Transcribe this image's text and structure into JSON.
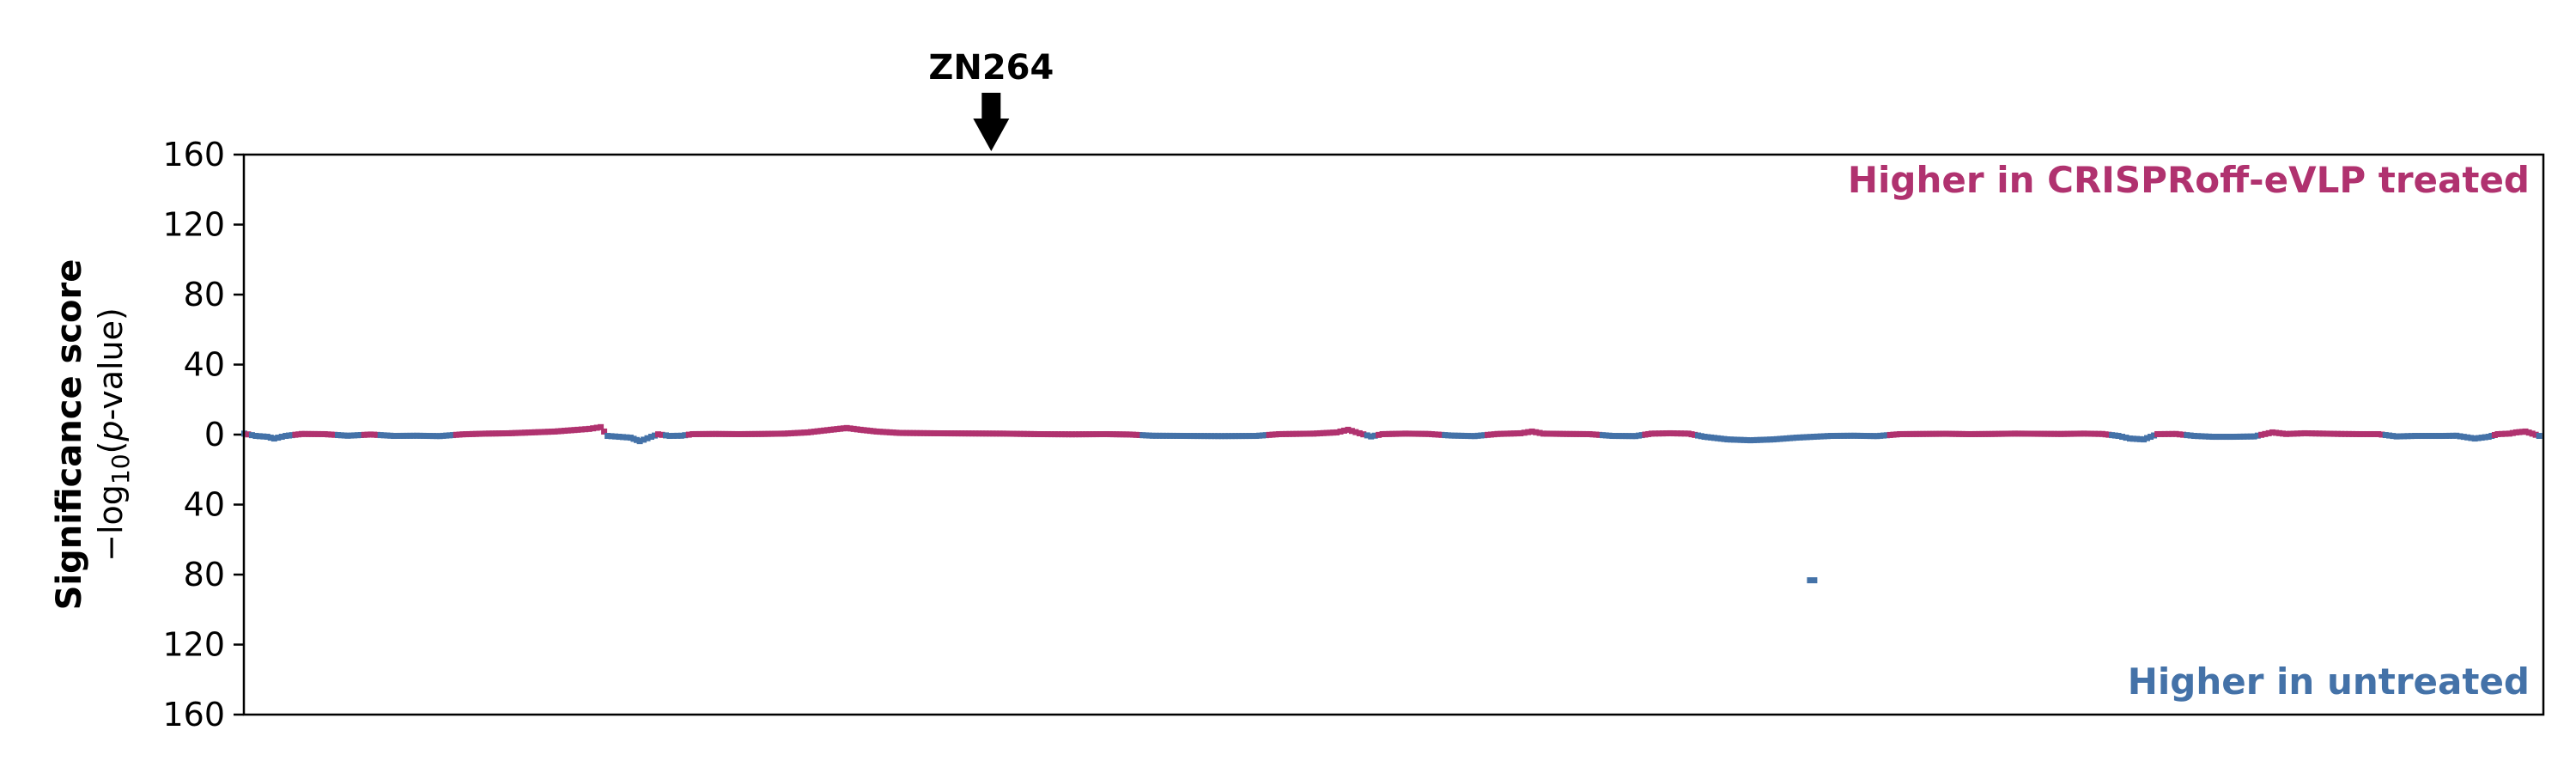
{
  "colors": {
    "up": "#b0326f",
    "down": "#4472a8",
    "axis": "#000000"
  },
  "chart_data": {
    "type": "scatter",
    "xlabel": "",
    "ylabel": "Significance score",
    "ylabel_sub": "−log10(p-value)",
    "ylim": [
      -160,
      160
    ],
    "yticks": [
      160,
      120,
      80,
      40,
      0,
      40,
      80,
      120,
      160
    ],
    "xlim": [
      0,
      1000
    ],
    "annotations": {
      "top_right": "Higher in CRISPRoff-eVLP treated",
      "bottom_right": "Higher in untreated"
    },
    "highlight": {
      "label": "ZN264",
      "x": 325
    },
    "series": [
      {
        "values": [
          [
            0,
            0.8,
            "down"
          ],
          [
            5,
            -0.5,
            "down"
          ],
          [
            10,
            -1.0,
            "down"
          ],
          [
            13,
            -2.0,
            "down"
          ],
          [
            18,
            -0.5,
            "down"
          ],
          [
            25,
            0.6,
            "up"
          ],
          [
            35,
            0.5,
            "up"
          ],
          [
            45,
            -0.4,
            "down"
          ],
          [
            55,
            0.3,
            "up"
          ],
          [
            65,
            -0.5,
            "down"
          ],
          [
            75,
            -0.4,
            "down"
          ],
          [
            85,
            -0.6,
            "down"
          ],
          [
            95,
            0.4,
            "up"
          ],
          [
            105,
            0.8,
            "up"
          ],
          [
            115,
            1.0,
            "up"
          ],
          [
            125,
            1.5,
            "up"
          ],
          [
            135,
            2.0,
            "up"
          ],
          [
            145,
            3.0,
            "up"
          ],
          [
            150,
            3.5,
            "up"
          ],
          [
            155,
            4.5,
            "up"
          ],
          [
            158,
            -0.5,
            "down"
          ],
          [
            163,
            -1.0,
            "down"
          ],
          [
            168,
            -1.5,
            "down"
          ],
          [
            172,
            -3.5,
            "down"
          ],
          [
            177,
            -1.0,
            "down"
          ],
          [
            180,
            0.4,
            "up"
          ],
          [
            185,
            -0.5,
            "down"
          ],
          [
            190,
            -0.4,
            "down"
          ],
          [
            195,
            0.5,
            "up"
          ],
          [
            205,
            0.6,
            "up"
          ],
          [
            215,
            0.5,
            "up"
          ],
          [
            225,
            0.6,
            "up"
          ],
          [
            235,
            0.8,
            "up"
          ],
          [
            245,
            1.5,
            "up"
          ],
          [
            255,
            3.0,
            "up"
          ],
          [
            262,
            4.0,
            "up"
          ],
          [
            268,
            3.0,
            "up"
          ],
          [
            275,
            2.0,
            "up"
          ],
          [
            285,
            1.2,
            "up"
          ],
          [
            300,
            1.0,
            "up"
          ],
          [
            315,
            0.9,
            "up"
          ],
          [
            330,
            0.8,
            "up"
          ],
          [
            345,
            0.5,
            "up"
          ],
          [
            360,
            0.4,
            "up"
          ],
          [
            375,
            0.5,
            "up"
          ],
          [
            385,
            0.3,
            "up"
          ],
          [
            395,
            -0.4,
            "down"
          ],
          [
            410,
            -0.5,
            "down"
          ],
          [
            425,
            -0.6,
            "down"
          ],
          [
            440,
            -0.5,
            "down"
          ],
          [
            450,
            0.5,
            "up"
          ],
          [
            465,
            0.8,
            "up"
          ],
          [
            475,
            1.5,
            "up"
          ],
          [
            480,
            3.0,
            "up"
          ],
          [
            485,
            1.0,
            "up"
          ],
          [
            490,
            -0.8,
            "down"
          ],
          [
            495,
            0.5,
            "up"
          ],
          [
            505,
            0.8,
            "up"
          ],
          [
            515,
            0.6,
            "up"
          ],
          [
            525,
            -0.3,
            "down"
          ],
          [
            535,
            -0.6,
            "down"
          ],
          [
            545,
            0.6,
            "up"
          ],
          [
            555,
            1.0,
            "up"
          ],
          [
            560,
            2.0,
            "up"
          ],
          [
            565,
            0.8,
            "up"
          ],
          [
            575,
            0.6,
            "up"
          ],
          [
            585,
            0.5,
            "up"
          ],
          [
            595,
            -0.5,
            "down"
          ],
          [
            605,
            -0.6,
            "down"
          ],
          [
            612,
            0.8,
            "up"
          ],
          [
            620,
            1.0,
            "up"
          ],
          [
            628,
            0.8,
            "up"
          ],
          [
            635,
            -1.0,
            "down"
          ],
          [
            645,
            -2.5,
            "down"
          ],
          [
            655,
            -3.0,
            "down"
          ],
          [
            665,
            -2.5,
            "down"
          ],
          [
            675,
            -1.5,
            "down"
          ],
          [
            682,
            -83,
            "down"
          ],
          [
            690,
            -0.5,
            "down"
          ],
          [
            700,
            -0.4,
            "down"
          ],
          [
            710,
            -0.6,
            "down"
          ],
          [
            720,
            0.5,
            "up"
          ],
          [
            730,
            0.6,
            "up"
          ],
          [
            740,
            0.7,
            "up"
          ],
          [
            750,
            0.5,
            "up"
          ],
          [
            760,
            0.6,
            "up"
          ],
          [
            770,
            0.8,
            "up"
          ],
          [
            780,
            0.7,
            "up"
          ],
          [
            790,
            0.6,
            "up"
          ],
          [
            800,
            0.8,
            "up"
          ],
          [
            808,
            0.6,
            "up"
          ],
          [
            815,
            -0.5,
            "down"
          ],
          [
            820,
            -2.0,
            "down"
          ],
          [
            826,
            -2.5,
            "down"
          ],
          [
            832,
            0.5,
            "up"
          ],
          [
            840,
            0.6,
            "up"
          ],
          [
            848,
            -0.5,
            "down"
          ],
          [
            856,
            -1.0,
            "down"
          ],
          [
            865,
            -1.0,
            "down"
          ],
          [
            874,
            -0.8,
            "down"
          ],
          [
            882,
            1.5,
            "up"
          ],
          [
            888,
            0.6,
            "up"
          ],
          [
            896,
            1.0,
            "up"
          ],
          [
            904,
            0.8,
            "up"
          ],
          [
            912,
            0.6,
            "up"
          ],
          [
            920,
            0.5,
            "up"
          ],
          [
            928,
            0.5,
            "up"
          ],
          [
            936,
            -0.8,
            "down"
          ],
          [
            944,
            -0.5,
            "down"
          ],
          [
            950,
            -0.5,
            "down"
          ],
          [
            956,
            -0.5,
            "down"
          ],
          [
            962,
            -0.4,
            "down"
          ],
          [
            970,
            -2.0,
            "down"
          ],
          [
            976,
            -1.0,
            "down"
          ],
          [
            980,
            0.5,
            "up"
          ],
          [
            985,
            0.8,
            "up"
          ],
          [
            988,
            1.5,
            "up"
          ],
          [
            992,
            2.0,
            "up"
          ],
          [
            995,
            0.8,
            "up"
          ],
          [
            998,
            -0.5,
            "down"
          ]
        ]
      }
    ]
  }
}
